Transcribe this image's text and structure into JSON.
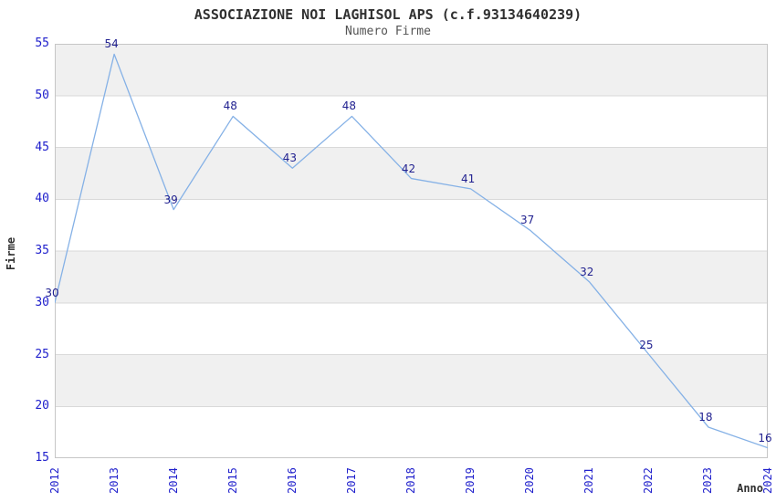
{
  "chart_data": {
    "type": "line",
    "title": "ASSOCIAZIONE NOI LAGHISOL APS (c.f.93134640239)",
    "subtitle": "Numero Firme",
    "xlabel": "Anno",
    "ylabel": "Firme",
    "categories": [
      "2012",
      "2013",
      "2014",
      "2015",
      "2016",
      "2017",
      "2018",
      "2019",
      "2020",
      "2021",
      "2022",
      "2023",
      "2024"
    ],
    "values": [
      30,
      54,
      39,
      48,
      43,
      48,
      42,
      41,
      37,
      32,
      25,
      18,
      16
    ],
    "ylim": [
      15,
      55
    ],
    "yticks": [
      15,
      20,
      25,
      30,
      35,
      40,
      45,
      50,
      55
    ],
    "grid": true,
    "legend": "none",
    "data_labels_shown": true,
    "colors": {
      "line": "#85b1e6",
      "data_label": "#1f1f8f",
      "tick_label": "#2121cc",
      "band": "#f0f0f0",
      "gridline": "#d9d9d9",
      "plot_border": "#c6c6c6",
      "title": "#303030",
      "subtitle": "#545454",
      "background": "#ffffff"
    }
  }
}
